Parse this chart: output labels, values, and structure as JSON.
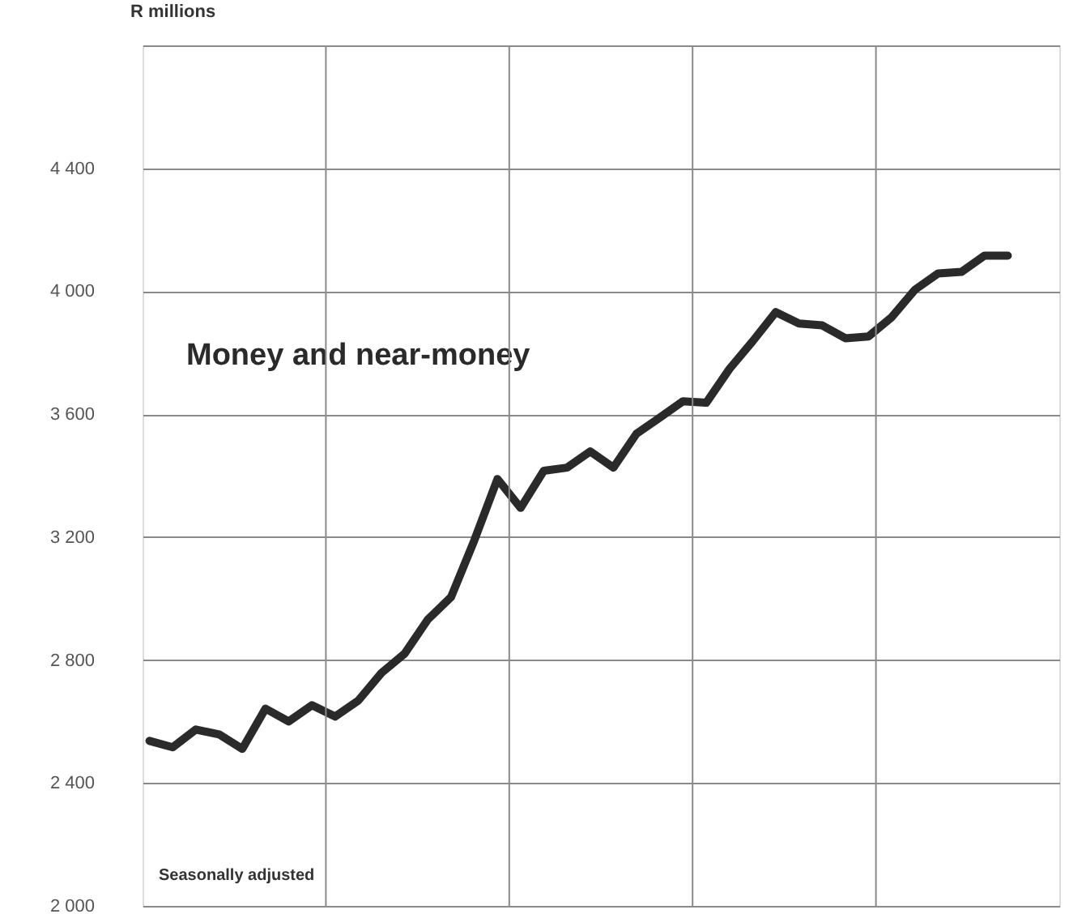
{
  "chart_data": {
    "type": "line",
    "ylabel": "R millions",
    "annotations": [
      "Seasonally adjusted"
    ],
    "categories": [
      null,
      null,
      null,
      null,
      null,
      null,
      null,
      null,
      null,
      null,
      null,
      null,
      null,
      null,
      null,
      null,
      null,
      null,
      null,
      null,
      null,
      null,
      null,
      null,
      null,
      null,
      null,
      null,
      null,
      null,
      null,
      null,
      null,
      null,
      null,
      null,
      null,
      null
    ],
    "ylim": [
      2000,
      4800
    ],
    "yticks": [
      {
        "value": 2000,
        "label": "2 000"
      },
      {
        "value": 2400,
        "label": "2 400"
      },
      {
        "value": 2800,
        "label": "2 800"
      },
      {
        "value": 3200,
        "label": "3 200"
      },
      {
        "value": 3600,
        "label": "3 600"
      },
      {
        "value": 4000,
        "label": "4 000"
      },
      {
        "value": 4400,
        "label": "4 400"
      },
      {
        "value": 4800,
        "label": null
      }
    ],
    "tick_labels": "y",
    "grid": true,
    "legend": false,
    "marker": "none",
    "line_style": "solid",
    "series": [
      {
        "name": "Money and near-money",
        "color": "#2a2a2a",
        "values": [
          2537,
          2516,
          2574,
          2558,
          2511,
          2642,
          2600,
          2653,
          2616,
          2668,
          2758,
          2821,
          2932,
          3005,
          3189,
          3389,
          3295,
          3416,
          3426,
          3479,
          3426,
          3537,
          3589,
          3642,
          3637,
          3747,
          3837,
          3932,
          3895,
          3889,
          3847,
          3853,
          3916,
          4005,
          4058,
          4063,
          4116,
          4116
        ]
      }
    ]
  }
}
